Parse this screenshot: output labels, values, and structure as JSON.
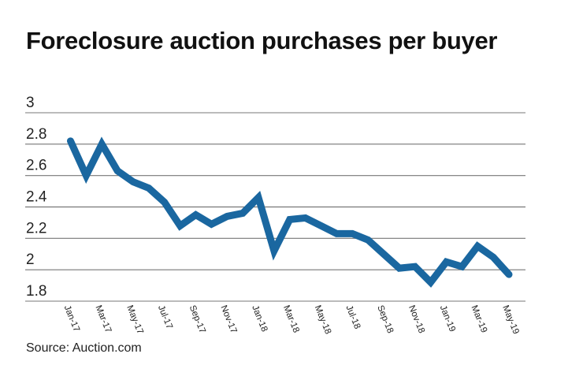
{
  "chart_data": {
    "type": "line",
    "title": "Foreclosure auction purchases per buyer",
    "source": "Source: Auction.com",
    "xlabel": "",
    "ylabel": "",
    "ylim": [
      1.8,
      3
    ],
    "yticks": [
      "3",
      "2.8",
      "2.6",
      "2.4",
      "2.2",
      "2",
      "1.8"
    ],
    "grid": true,
    "line_color": "#1a67a0",
    "x": [
      "Jan-17",
      "Feb-17",
      "Mar-17",
      "Apr-17",
      "May-17",
      "Jun-17",
      "Jul-17",
      "Aug-17",
      "Sep-17",
      "Oct-17",
      "Nov-17",
      "Dec-17",
      "Jan-18",
      "Feb-18",
      "Mar-18",
      "Apr-18",
      "May-18",
      "Jun-18",
      "Jul-18",
      "Aug-18",
      "Sep-18",
      "Oct-18",
      "Nov-18",
      "Dec-18",
      "Jan-19",
      "Feb-19",
      "Mar-19",
      "Apr-19",
      "May-19"
    ],
    "xtick_labels": [
      "Jan-17",
      "Mar-17",
      "May-17",
      "Jul-17",
      "Sep-17",
      "Nov-17",
      "Jan-18",
      "Mar-18",
      "May-18",
      "Jul-18",
      "Sep-18",
      "Nov-18",
      "Jan-19",
      "Mar-19",
      "May-19"
    ],
    "values": [
      2.82,
      2.6,
      2.8,
      2.63,
      2.56,
      2.52,
      2.43,
      2.28,
      2.35,
      2.29,
      2.34,
      2.36,
      2.46,
      2.12,
      2.32,
      2.33,
      2.28,
      2.23,
      2.23,
      2.19,
      2.1,
      2.01,
      2.02,
      1.92,
      2.05,
      2.02,
      2.15,
      2.08,
      1.97
    ]
  }
}
